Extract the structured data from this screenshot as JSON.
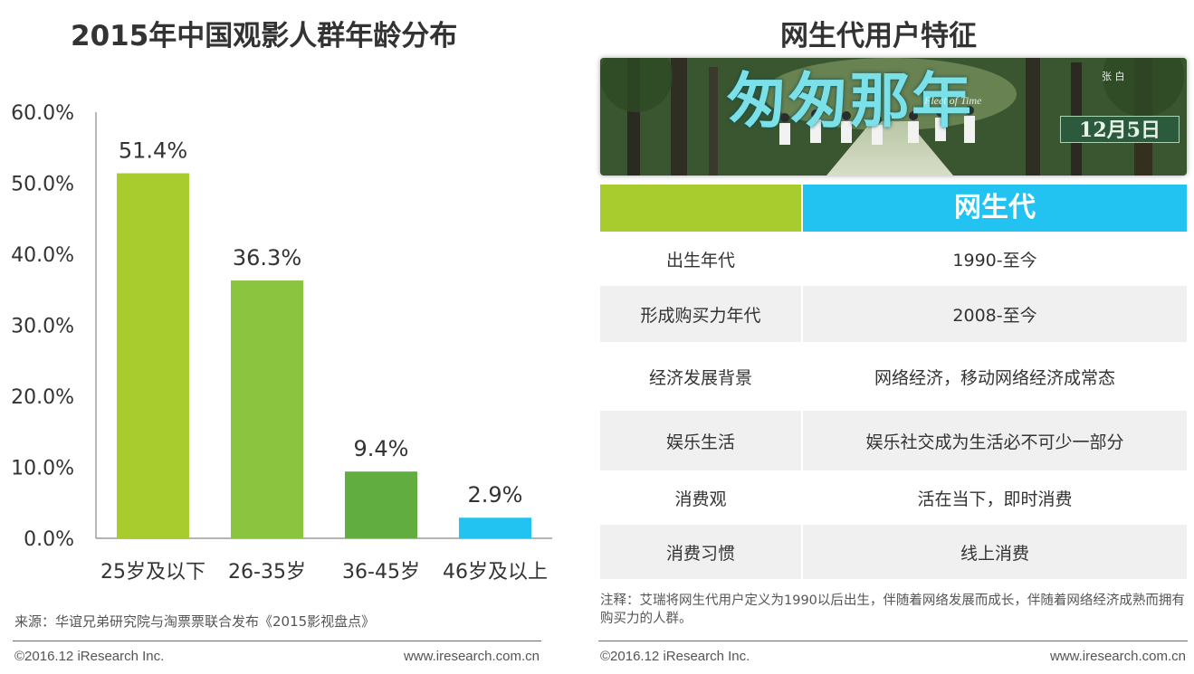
{
  "left": {
    "title": "2015年中国观影人群年龄分布",
    "source": "来源：华谊兄弟研究院与淘票票联合发布《2015影视盘点》",
    "footer_left": "©2016.12 iResearch Inc.",
    "footer_right": "www.iresearch.com.cn"
  },
  "right": {
    "title": "网生代用户特征",
    "poster": {
      "title_text": "匆匆那年",
      "subtitle": "Fleet of Time",
      "date": "12月5日",
      "tiny_text": "张  白"
    },
    "table": {
      "header": "网生代",
      "rows": [
        {
          "label": "出生年代",
          "value": "1990-至今"
        },
        {
          "label": "形成购买力年代",
          "value": "2008-至今"
        },
        {
          "label": "经济发展背景",
          "value": "网络经济，移动网络经济成常态"
        },
        {
          "label": "娱乐生活",
          "value": "娱乐社交成为生活必不可少一部分"
        },
        {
          "label": "消费观",
          "value": "活在当下，即时消费"
        },
        {
          "label": "消费习惯",
          "value": "线上消费"
        }
      ]
    },
    "note": "注释：艾瑞将网生代用户定义为1990以后出生，伴随着网络发展而成长，伴随着网络经济成熟而拥有购买力的人群。",
    "footer_left": "©2016.12 iResearch Inc.",
    "footer_right": "www.iresearch.com.cn"
  },
  "chart_data": {
    "type": "bar",
    "title": "2015年中国观影人群年龄分布",
    "categories": [
      "25岁及以下",
      "26-35岁",
      "36-45岁",
      "46岁及以上"
    ],
    "values": [
      51.4,
      36.3,
      9.4,
      2.9
    ],
    "data_labels": [
      "51.4%",
      "36.3%",
      "9.4%",
      "2.9%"
    ],
    "bar_colors": [
      "#a8cc2d",
      "#8bc43f",
      "#62ad40",
      "#22c3f0"
    ],
    "ylim": [
      0,
      60
    ],
    "y_ticks": [
      "0.0%",
      "10.0%",
      "20.0%",
      "30.0%",
      "40.0%",
      "50.0%",
      "60.0%"
    ],
    "xlabel": "",
    "ylabel": "",
    "grid": false,
    "legend": "none"
  }
}
